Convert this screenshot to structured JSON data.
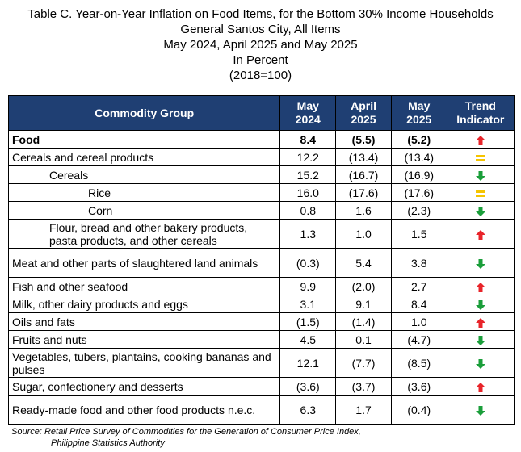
{
  "title": {
    "line1": "Table C. Year-on-Year Inflation on Food Items, for the Bottom 30% Income Households",
    "line2": "General Santos City, All Items",
    "line3": "May 2024, April 2025 and May 2025",
    "line4": "In Percent",
    "line5": "(2018=100)"
  },
  "table": {
    "headers": {
      "group": "Commodity Group",
      "c1": [
        "May",
        "2024"
      ],
      "c2": [
        "April",
        "2025"
      ],
      "c3": [
        "May",
        "2025"
      ],
      "trend": [
        "Trend",
        "Indicator"
      ]
    },
    "rows": [
      {
        "name": "Food",
        "v": [
          "8.4",
          "(5.5)",
          "(5.2)"
        ],
        "trend": "up-large"
      },
      {
        "name": "Cereals and cereal products",
        "v": [
          "12.2",
          "(13.4)",
          "(13.4)"
        ],
        "trend": "equal"
      },
      {
        "name": "Cereals",
        "v": [
          "15.2",
          "(16.7)",
          "(16.9)"
        ],
        "trend": "down"
      },
      {
        "name": "Rice",
        "v": [
          "16.0",
          "(17.6)",
          "(17.6)"
        ],
        "trend": "equal"
      },
      {
        "name": "Corn",
        "v": [
          "0.8",
          "1.6",
          "(2.3)"
        ],
        "trend": "down"
      },
      {
        "name": "Flour, bread and other bakery products, pasta products, and other cereals",
        "v": [
          "1.3",
          "1.0",
          "1.5"
        ],
        "trend": "up"
      },
      {
        "name": "Meat and other parts of slaughtered land animals",
        "v": [
          "(0.3)",
          "5.4",
          "3.8"
        ],
        "trend": "down"
      },
      {
        "name": "Fish and other seafood",
        "v": [
          "9.9",
          "(2.0)",
          "2.7"
        ],
        "trend": "up"
      },
      {
        "name": "Milk, other dairy products and eggs",
        "v": [
          "3.1",
          "9.1",
          "8.4"
        ],
        "trend": "down"
      },
      {
        "name": "Oils and fats",
        "v": [
          "(1.5)",
          "(1.4)",
          "1.0"
        ],
        "trend": "up"
      },
      {
        "name": "Fruits and nuts",
        "v": [
          "4.5",
          "0.1",
          "(4.7)"
        ],
        "trend": "down"
      },
      {
        "name": "Vegetables, tubers, plantains, cooking bananas and pulses",
        "v": [
          "12.1",
          "(7.7)",
          "(8.5)"
        ],
        "trend": "down"
      },
      {
        "name": "Sugar, confectionery and desserts",
        "v": [
          "(3.6)",
          "(3.7)",
          "(3.6)"
        ],
        "trend": "up"
      },
      {
        "name": "Ready-made food and other food products n.e.c.",
        "v": [
          "6.3",
          "1.7",
          "(0.4)"
        ],
        "trend": "down"
      }
    ]
  },
  "colors": {
    "header_bg": "#1f3f73",
    "up": "#e8242a",
    "down": "#1a9e3a",
    "equal": "#f5c400"
  },
  "icons": {
    "up-large": "red-up-arrow-icon",
    "up": "red-up-arrow-icon",
    "down": "green-down-arrow-icon",
    "equal": "yellow-equal-icon"
  },
  "source": {
    "line1": "Source: Retail Price Survey of Commodities for the Generation of Consumer Price Index,",
    "line2": "Philippine Statistics Authority"
  }
}
